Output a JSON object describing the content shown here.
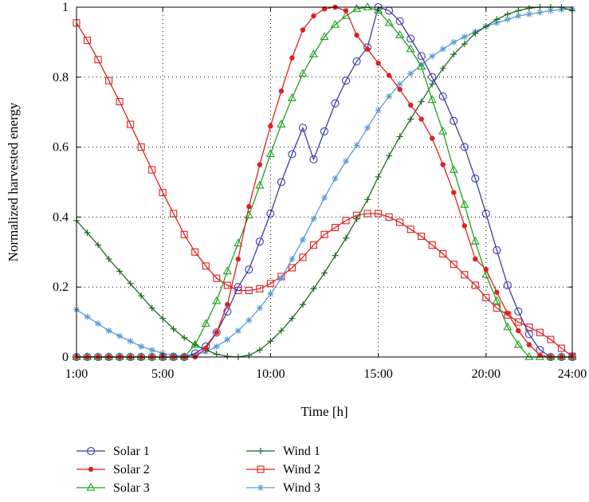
{
  "chart_data": {
    "type": "line",
    "xlabel": "Time [h]",
    "ylabel": "Normalized harvested energy",
    "xlim": [
      1,
      24
    ],
    "ylim": [
      0,
      1
    ],
    "x_ticks": [
      {
        "value": 1,
        "label": "1:00"
      },
      {
        "value": 5,
        "label": "5:00"
      },
      {
        "value": 10,
        "label": "10:00"
      },
      {
        "value": 15,
        "label": "15:00"
      },
      {
        "value": 20,
        "label": "20:00"
      },
      {
        "value": 24,
        "label": "24:00"
      }
    ],
    "y_ticks": [
      {
        "value": 0,
        "label": "0"
      },
      {
        "value": 0.2,
        "label": "0.2"
      },
      {
        "value": 0.4,
        "label": "0.4"
      },
      {
        "value": 0.6,
        "label": "0.6"
      },
      {
        "value": 0.8,
        "label": "0.8"
      },
      {
        "value": 1,
        "label": "1"
      }
    ],
    "grid": "dotted",
    "legend_position": "bottom",
    "x": [
      1,
      1.5,
      2,
      2.5,
      3,
      3.5,
      4,
      4.5,
      5,
      5.5,
      6,
      6.5,
      7,
      7.5,
      8,
      8.5,
      9,
      9.5,
      10,
      10.5,
      11,
      11.5,
      12,
      12.5,
      13,
      13.5,
      14,
      14.5,
      15,
      15.5,
      16,
      16.5,
      17,
      17.5,
      18,
      18.5,
      19,
      19.5,
      20,
      20.5,
      21,
      21.5,
      22,
      22.5,
      23,
      23.5,
      24
    ],
    "series": [
      {
        "name": "Solar 1",
        "color": "#3b3ba8",
        "marker": "circle",
        "values": [
          0,
          0,
          0,
          0,
          0,
          0,
          0,
          0,
          0,
          0,
          0,
          0.01,
          0.03,
          0.07,
          0.13,
          0.2,
          0.25,
          0.33,
          0.41,
          0.5,
          0.58,
          0.655,
          0.565,
          0.645,
          0.725,
          0.79,
          0.845,
          0.885,
          1.0,
          0.99,
          0.96,
          0.91,
          0.86,
          0.8,
          0.745,
          0.675,
          0.6,
          0.51,
          0.41,
          0.305,
          0.205,
          0.13,
          0.065,
          0.02,
          0,
          0,
          0
        ]
      },
      {
        "name": "Solar 2",
        "color": "#e02020",
        "marker": "dot",
        "values": [
          0,
          0,
          0,
          0,
          0,
          0,
          0,
          0,
          0,
          0,
          0,
          0,
          0.025,
          0.07,
          0.15,
          0.28,
          0.43,
          0.55,
          0.66,
          0.76,
          0.855,
          0.935,
          0.975,
          0.995,
          1.0,
          0.99,
          0.92,
          0.88,
          0.84,
          0.805,
          0.765,
          0.72,
          0.68,
          0.625,
          0.55,
          0.47,
          0.375,
          0.28,
          0.25,
          0.185,
          0.125,
          0.075,
          0.035,
          0.005,
          0,
          0,
          0
        ]
      },
      {
        "name": "Solar 3",
        "color": "#20a020",
        "marker": "triangle",
        "values": [
          0,
          0,
          0,
          0,
          0,
          0,
          0,
          0,
          0,
          0,
          0,
          0.035,
          0.095,
          0.16,
          0.245,
          0.325,
          0.405,
          0.49,
          0.58,
          0.665,
          0.74,
          0.81,
          0.865,
          0.915,
          0.95,
          0.975,
          0.995,
          1.0,
          0.99,
          0.955,
          0.92,
          0.88,
          0.83,
          0.735,
          0.645,
          0.535,
          0.435,
          0.33,
          0.235,
          0.16,
          0.085,
          0.035,
          0,
          0,
          0,
          0,
          0
        ]
      },
      {
        "name": "Wind 1",
        "color": "#1e6b1e",
        "marker": "plus",
        "values": [
          0.39,
          0.355,
          0.32,
          0.28,
          0.245,
          0.21,
          0.175,
          0.14,
          0.11,
          0.08,
          0.055,
          0.035,
          0.02,
          0.008,
          0.002,
          0,
          0.005,
          0.02,
          0.045,
          0.075,
          0.11,
          0.15,
          0.195,
          0.24,
          0.29,
          0.34,
          0.395,
          0.45,
          0.515,
          0.575,
          0.63,
          0.68,
          0.73,
          0.78,
          0.825,
          0.865,
          0.895,
          0.925,
          0.945,
          0.965,
          0.98,
          0.99,
          0.997,
          1.0,
          1.0,
          1.0,
          0.99
        ]
      },
      {
        "name": "Wind 2",
        "color": "#e02020",
        "marker": "square",
        "values": [
          0.955,
          0.905,
          0.85,
          0.79,
          0.73,
          0.665,
          0.6,
          0.535,
          0.47,
          0.41,
          0.35,
          0.3,
          0.26,
          0.225,
          0.205,
          0.19,
          0.19,
          0.195,
          0.21,
          0.23,
          0.255,
          0.285,
          0.32,
          0.35,
          0.37,
          0.39,
          0.405,
          0.41,
          0.41,
          0.4,
          0.385,
          0.365,
          0.345,
          0.32,
          0.295,
          0.265,
          0.235,
          0.205,
          0.17,
          0.14,
          0.12,
          0.1,
          0.085,
          0.07,
          0.05,
          0.025,
          0.002
        ]
      },
      {
        "name": "Wind 3",
        "color": "#5b9bd5",
        "marker": "star",
        "values": [
          0.135,
          0.115,
          0.095,
          0.075,
          0.06,
          0.045,
          0.03,
          0.02,
          0.01,
          0.005,
          0.002,
          0.005,
          0.015,
          0.03,
          0.05,
          0.075,
          0.105,
          0.14,
          0.18,
          0.225,
          0.28,
          0.335,
          0.395,
          0.455,
          0.51,
          0.56,
          0.605,
          0.655,
          0.705,
          0.745,
          0.78,
          0.81,
          0.835,
          0.86,
          0.88,
          0.9,
          0.915,
          0.93,
          0.945,
          0.955,
          0.965,
          0.975,
          0.98,
          0.985,
          0.99,
          0.993,
          0.995
        ]
      }
    ]
  }
}
